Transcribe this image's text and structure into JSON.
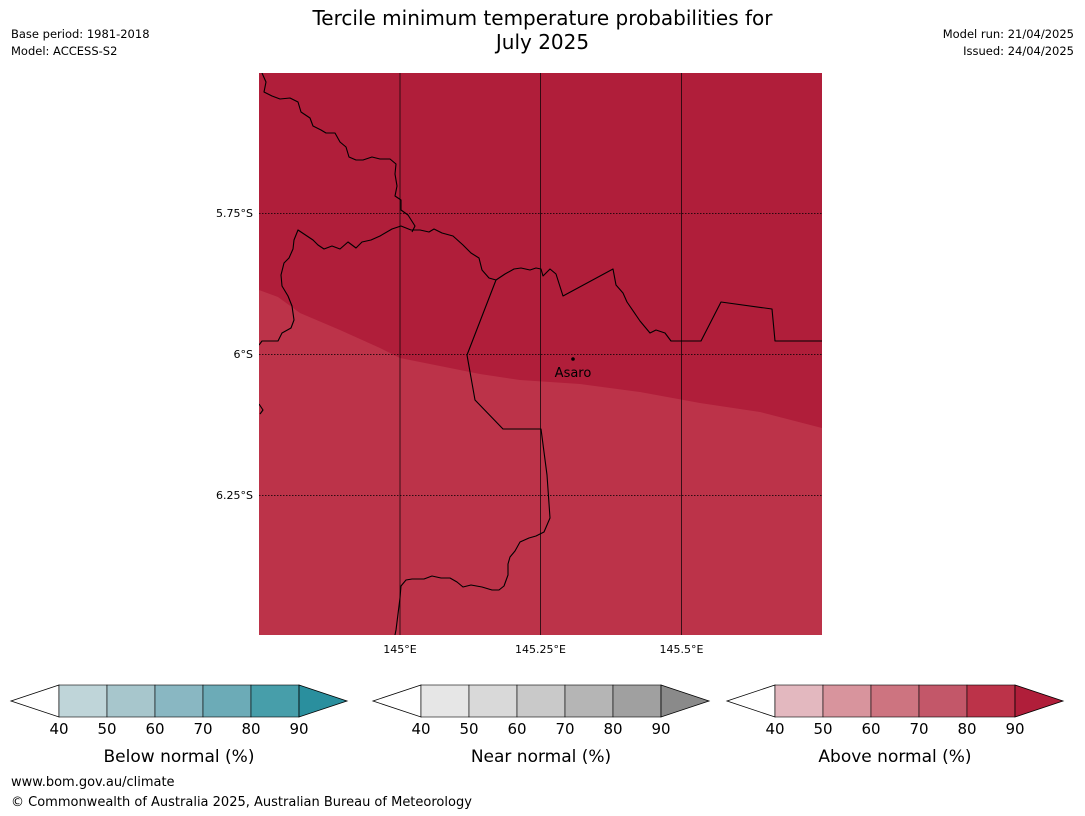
{
  "title_line1": "Tercile minimum temperature probabilities for",
  "title_line2": "July 2025",
  "meta_left": {
    "base_period": "Base period: 1981-2018",
    "model": "Model: ACCESS-S2"
  },
  "meta_right": {
    "model_run": "Model run: 21/04/2025",
    "issued": "Issued: 24/04/2025"
  },
  "map": {
    "lat_labels": [
      "5.75°S",
      "6°S",
      "6.25°S"
    ],
    "lon_labels": [
      "145°E",
      "145.25°E",
      "145.5°E"
    ],
    "place": "Asaro",
    "colors": {
      "probability_80_90": "#b01e3a",
      "probability_70_80": "#bc3349"
    }
  },
  "colorbars": [
    {
      "label": "Below normal (%)",
      "ticks": [
        "40",
        "50",
        "60",
        "70",
        "80",
        "90"
      ],
      "colors": [
        "#bfd5d9",
        "#a7c6cc",
        "#89b7c2",
        "#6cabb7",
        "#479eaa",
        "#2a8f9e"
      ]
    },
    {
      "label": "Near normal (%)",
      "ticks": [
        "40",
        "50",
        "60",
        "70",
        "80",
        "90"
      ],
      "colors": [
        "#e6e6e6",
        "#d9d9d9",
        "#c9c9c9",
        "#b5b5b5",
        "#a0a0a0",
        "#8a8a8a"
      ]
    },
    {
      "label": "Above normal (%)",
      "ticks": [
        "40",
        "50",
        "60",
        "70",
        "80",
        "90"
      ],
      "colors": [
        "#e3b8bf",
        "#d8949d",
        "#cd7480",
        "#c35769",
        "#bc3349",
        "#b01e3a"
      ]
    }
  ],
  "footer": {
    "url": "www.bom.gov.au/climate",
    "copyright": "© Commonwealth of Australia 2025, Australian Bureau of Meteorology"
  }
}
